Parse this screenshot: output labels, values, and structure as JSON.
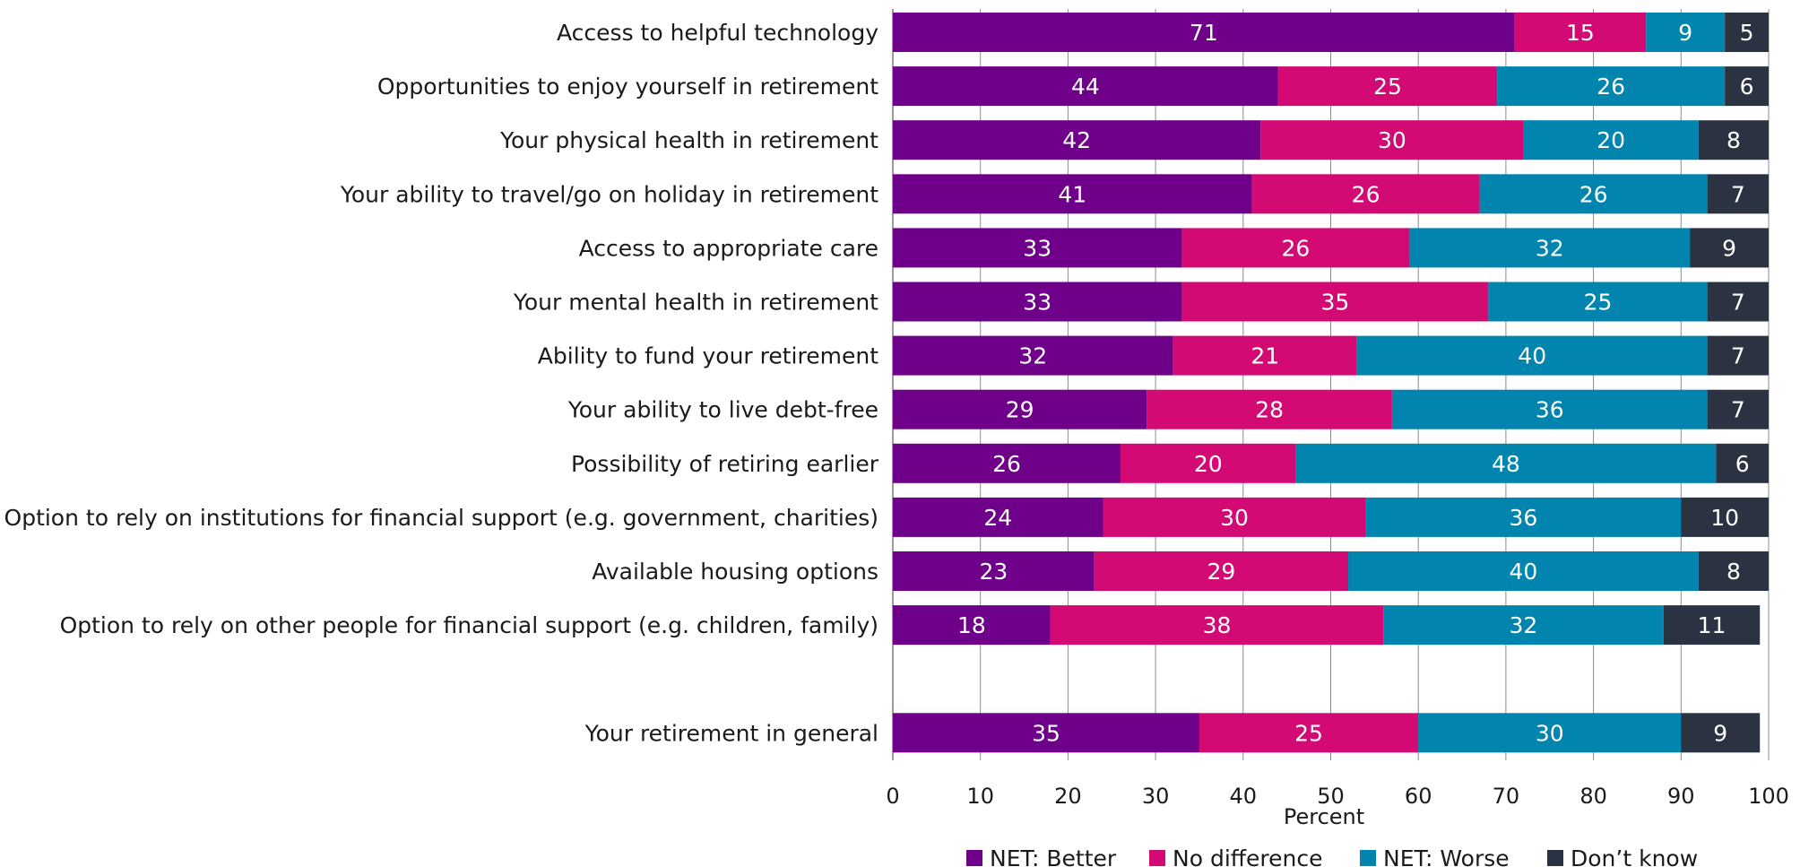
{
  "chart_data": {
    "type": "bar",
    "orientation": "horizontal",
    "stacked": true,
    "categories": [
      "Access to helpful technology",
      "Opportunities to enjoy yourself in retirement",
      "Your physical health in retirement",
      "Your ability to travel/go on holiday in retirement",
      "Access to appropriate care",
      "Your mental health in retirement",
      "Ability to fund your retirement",
      "Your ability to live debt-free",
      "Possibility of retiring earlier",
      "Option to rely on institutions for financial support (e.g. government, charities)",
      "Available housing options",
      "Option to rely on other people for financial support (e.g. children, family)",
      "",
      "Your retirement in general"
    ],
    "series": [
      {
        "name": "NET: Better",
        "color": "#6e0089",
        "values": [
          71,
          44,
          42,
          41,
          33,
          33,
          32,
          29,
          26,
          24,
          23,
          18,
          null,
          35
        ]
      },
      {
        "name": "No difference",
        "color": "#d30a74",
        "values": [
          15,
          25,
          30,
          26,
          26,
          35,
          21,
          28,
          20,
          30,
          29,
          38,
          null,
          25
        ]
      },
      {
        "name": "NET: Worse",
        "color": "#0184ad",
        "values": [
          9,
          26,
          20,
          26,
          32,
          25,
          40,
          36,
          48,
          36,
          40,
          32,
          null,
          30
        ]
      },
      {
        "name": "Don’t know",
        "color": "#2b3342",
        "values": [
          5,
          6,
          8,
          7,
          9,
          7,
          7,
          7,
          6,
          10,
          8,
          11,
          null,
          9
        ]
      }
    ],
    "xlabel": "Percent",
    "ylabel": "",
    "xlim": [
      0,
      100
    ],
    "xticks": [
      0,
      10,
      20,
      30,
      40,
      50,
      60,
      70,
      80,
      90,
      100
    ],
    "grid": "vertical",
    "legend": "bottom"
  }
}
